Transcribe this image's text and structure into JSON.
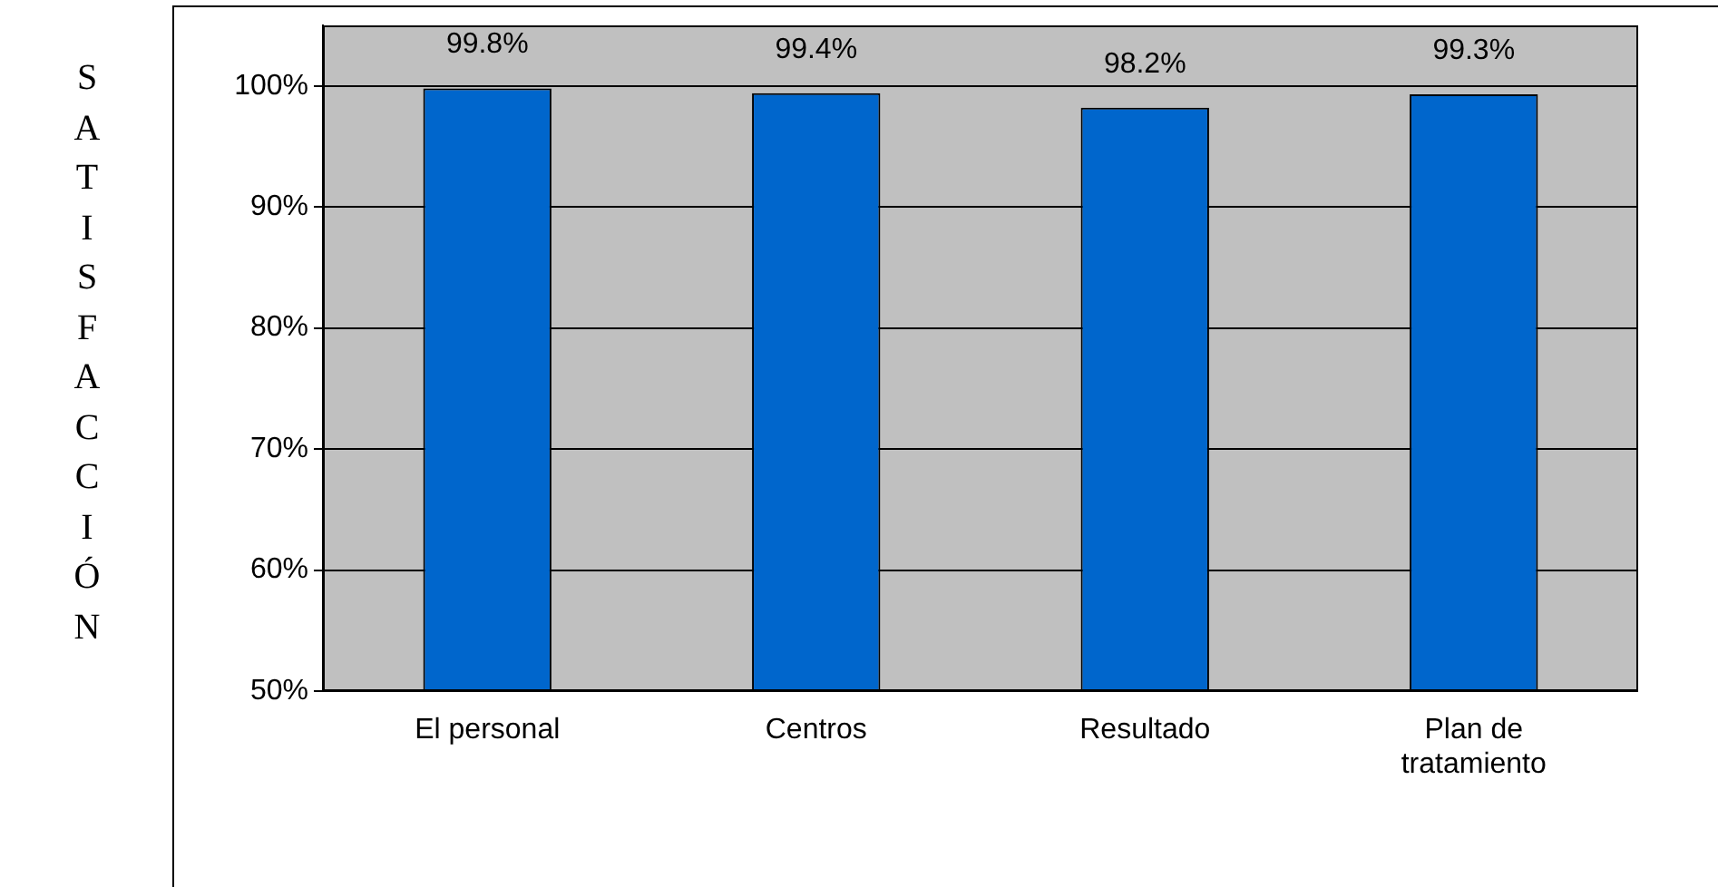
{
  "chart_data": {
    "type": "bar",
    "ylabel": "SATISFACCIÓN",
    "categories": [
      "El personal",
      "Centros",
      "Resultado",
      "Plan de tratamiento"
    ],
    "values": [
      99.8,
      99.4,
      98.2,
      99.3
    ],
    "color": "#0066cc",
    "value_labels": [
      "99.8%",
      "99.4%",
      "98.2%",
      "99.3%"
    ],
    "ylim": [
      50,
      105
    ],
    "yticks": [
      {
        "value": 50,
        "label": "50%"
      },
      {
        "value": 60,
        "label": "60%"
      },
      {
        "value": 70,
        "label": "70%"
      },
      {
        "value": 80,
        "label": "80%"
      },
      {
        "value": 90,
        "label": "90%"
      },
      {
        "value": 100,
        "label": "100%"
      }
    ],
    "grid": "y",
    "legend": false
  }
}
